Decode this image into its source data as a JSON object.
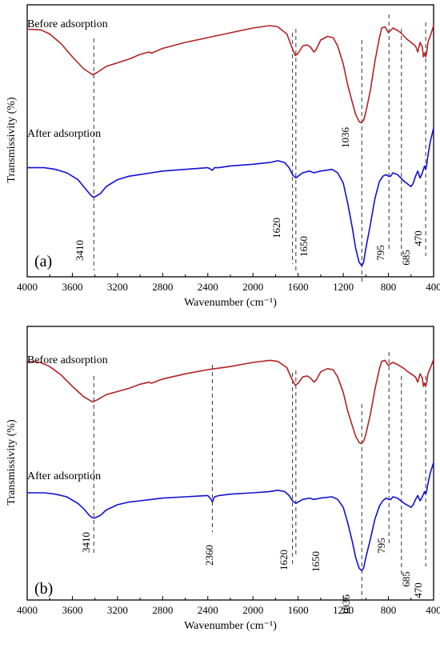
{
  "chart_data": [
    {
      "type": "line",
      "panel_label": "(a)",
      "xlabel": "Wavenumber (cm⁻¹)",
      "ylabel": "Transmissivity (%)",
      "xlim": [
        4000,
        400
      ],
      "x_reversed": true,
      "x_ticks": [
        4000,
        3600,
        3200,
        2800,
        2400,
        2000,
        1600,
        1200,
        800,
        400
      ],
      "x_tick_labels": [
        "4000",
        "3600",
        "3200",
        "2800",
        "2400",
        "2000",
        "1600",
        "1200",
        "800",
        "400"
      ],
      "ylim": [
        0,
        100
      ],
      "grid": false,
      "legend": "none",
      "series": [
        {
          "name": "Before adsorption",
          "color": "#b22222",
          "x": [
            4000,
            3880,
            3800,
            3700,
            3600,
            3500,
            3420,
            3380,
            3300,
            3200,
            3100,
            3000,
            2920,
            2900,
            2850,
            2800,
            2600,
            2400,
            2200,
            2000,
            1850,
            1780,
            1700,
            1660,
            1625,
            1600,
            1560,
            1520,
            1490,
            1460,
            1440,
            1400,
            1340,
            1290,
            1250,
            1200,
            1160,
            1120,
            1090,
            1060,
            1040,
            1020,
            1000,
            960,
            920,
            880,
            860,
            830,
            800,
            780,
            760,
            720,
            690,
            660,
            640,
            600,
            560,
            540,
            520,
            500,
            490,
            480,
            470,
            460,
            450,
            420,
            400
          ],
          "y": [
            89,
            88.5,
            85,
            77,
            66,
            56,
            51,
            53,
            58,
            61,
            64,
            68,
            70,
            69,
            71,
            73,
            78,
            82,
            86,
            90,
            92,
            91,
            85,
            75,
            67,
            69,
            75,
            76,
            74,
            70,
            72,
            80,
            83,
            82,
            75,
            60,
            42,
            28,
            18,
            12,
            11,
            13,
            20,
            38,
            62,
            82,
            90,
            91,
            86,
            88,
            90,
            88,
            86,
            83,
            81,
            78,
            75,
            70,
            78,
            74,
            66,
            69,
            66,
            70,
            78,
            86,
            92
          ]
        },
        {
          "name": "After adsorption",
          "color": "#1010d0",
          "x": [
            4000,
            3850,
            3750,
            3650,
            3550,
            3500,
            3450,
            3420,
            3400,
            3350,
            3300,
            3200,
            3100,
            3000,
            2900,
            2800,
            2600,
            2400,
            2360,
            2340,
            2300,
            2200,
            2000,
            1850,
            1780,
            1720,
            1680,
            1650,
            1620,
            1600,
            1560,
            1500,
            1460,
            1400,
            1300,
            1250,
            1200,
            1160,
            1120,
            1090,
            1060,
            1036,
            1020,
            1000,
            960,
            920,
            880,
            850,
            820,
            800,
            780,
            760,
            720,
            690,
            660,
            640,
            620,
            600,
            580,
            560,
            540,
            520,
            500,
            480,
            470,
            460,
            450,
            430,
            400
          ],
          "y": [
            63,
            63,
            62,
            60,
            56,
            52,
            48,
            46,
            46,
            48,
            52,
            56,
            58,
            59,
            60,
            61,
            62,
            63,
            61.5,
            63,
            63,
            64,
            65,
            66,
            67,
            66,
            63,
            59,
            57,
            58,
            60,
            61,
            60,
            61,
            62,
            60,
            54,
            42,
            28,
            16,
            8,
            6,
            8,
            16,
            30,
            45,
            55,
            58,
            59,
            58,
            58,
            60,
            59,
            57,
            55,
            54,
            53,
            52,
            54,
            58,
            61,
            57,
            60,
            64,
            62,
            65,
            70,
            78,
            86
          ]
        }
      ],
      "series_labels": [
        "Before adsorption",
        "After adsorption"
      ],
      "peak_markers": [
        3410,
        1620,
        1650,
        1036,
        795,
        685,
        470
      ],
      "peak_labels": [
        "3410",
        "1620",
        "1650",
        "1036",
        "795",
        "685",
        "470"
      ]
    },
    {
      "type": "line",
      "panel_label": "(b)",
      "xlabel": "Wavenumber (cm⁻¹)",
      "ylabel": "Transmissivity (%)",
      "xlim": [
        4000,
        400
      ],
      "x_reversed": true,
      "x_ticks": [
        4000,
        3600,
        3200,
        2800,
        2400,
        2000,
        1600,
        1200,
        800,
        400
      ],
      "x_tick_labels": [
        "4000",
        "3600",
        "3200",
        "2800",
        "2400",
        "2000",
        "1600",
        "1200",
        "800",
        "400"
      ],
      "ylim": [
        0,
        100
      ],
      "grid": false,
      "legend": "none",
      "series": [
        {
          "name": "Before adsorption",
          "color": "#b22222",
          "x": [
            4000,
            3880,
            3800,
            3700,
            3600,
            3500,
            3420,
            3380,
            3300,
            3200,
            3100,
            3000,
            2920,
            2900,
            2850,
            2800,
            2600,
            2400,
            2200,
            2000,
            1850,
            1780,
            1700,
            1660,
            1625,
            1600,
            1560,
            1520,
            1490,
            1460,
            1440,
            1400,
            1340,
            1290,
            1250,
            1200,
            1160,
            1120,
            1090,
            1060,
            1040,
            1020,
            1000,
            960,
            920,
            880,
            860,
            830,
            800,
            780,
            760,
            720,
            690,
            660,
            640,
            600,
            560,
            540,
            520,
            500,
            490,
            480,
            470,
            460,
            450,
            420,
            400
          ],
          "y": [
            91,
            90,
            86,
            78,
            67,
            57,
            52,
            54,
            59,
            62,
            65,
            69,
            71,
            70,
            72,
            74,
            79,
            83,
            86,
            90,
            92,
            91,
            85,
            75,
            68,
            70,
            76,
            77,
            75,
            71,
            73,
            81,
            84,
            83,
            76,
            61,
            43,
            29,
            19,
            13,
            12,
            14,
            21,
            40,
            64,
            84,
            91,
            92,
            87,
            89,
            90,
            88,
            86,
            84,
            82,
            79,
            76,
            71,
            79,
            75,
            67,
            70,
            67,
            71,
            79,
            87,
            93
          ]
        },
        {
          "name": "After adsorption",
          "color": "#1010d0",
          "x": [
            4000,
            3850,
            3750,
            3650,
            3550,
            3500,
            3450,
            3420,
            3400,
            3350,
            3300,
            3200,
            3100,
            3000,
            2900,
            2800,
            2600,
            2400,
            2370,
            2360,
            2340,
            2300,
            2200,
            2000,
            1850,
            1780,
            1720,
            1680,
            1650,
            1620,
            1600,
            1560,
            1500,
            1460,
            1400,
            1300,
            1250,
            1200,
            1160,
            1120,
            1090,
            1060,
            1036,
            1020,
            1000,
            960,
            920,
            880,
            850,
            820,
            800,
            780,
            760,
            720,
            690,
            660,
            640,
            620,
            600,
            580,
            560,
            540,
            520,
            500,
            480,
            470,
            460,
            450,
            430,
            400
          ],
          "y": [
            63,
            63,
            62,
            60,
            55,
            51,
            46,
            44,
            44,
            46,
            50,
            54,
            56,
            57,
            58,
            59,
            60,
            61,
            58,
            56,
            60,
            61,
            62,
            63,
            64,
            65,
            64,
            61,
            57,
            55,
            56,
            58,
            59,
            58,
            59,
            60,
            58,
            52,
            40,
            26,
            14,
            6,
            4,
            6,
            14,
            28,
            43,
            53,
            57,
            59,
            58,
            58,
            60,
            59,
            57,
            55,
            54,
            53,
            52,
            54,
            58,
            61,
            57,
            60,
            64,
            62,
            65,
            70,
            78,
            86
          ]
        }
      ],
      "series_labels": [
        "Before adsorption",
        "After adsorption"
      ],
      "peak_markers": [
        3410,
        2360,
        1620,
        1650,
        1036,
        795,
        685,
        470
      ],
      "peak_labels": [
        "3410",
        "2360",
        "1620",
        "1650",
        "1036",
        "795",
        "685",
        "470"
      ]
    }
  ]
}
